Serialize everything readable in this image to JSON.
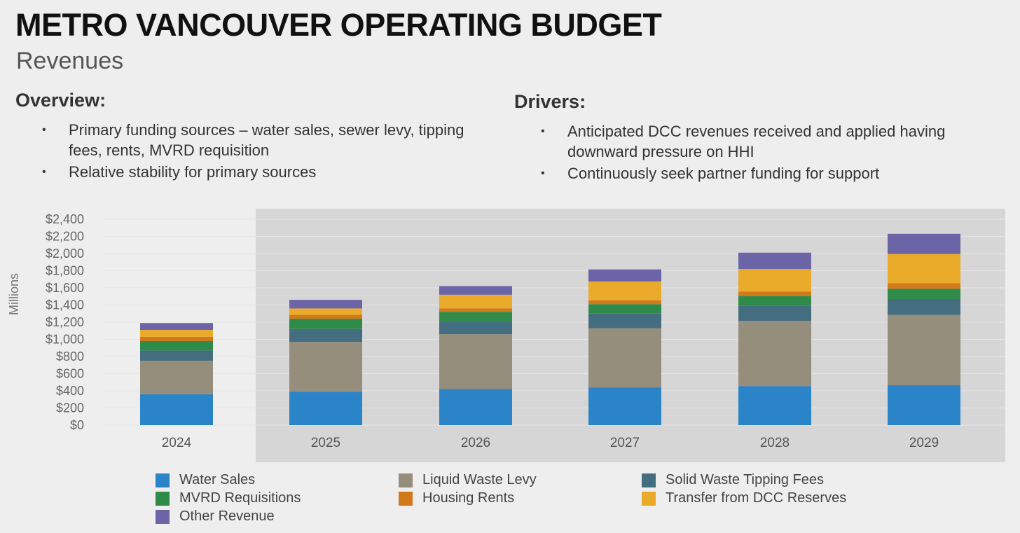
{
  "header": {
    "title": "METRO VANCOUVER OPERATING BUDGET",
    "subtitle": "Revenues"
  },
  "overview": {
    "heading": "Overview:",
    "bullets": [
      "Primary funding sources – water sales, sewer levy, tipping fees, rents, MVRD requisition",
      "Relative stability for primary sources"
    ]
  },
  "drivers": {
    "heading": "Drivers:",
    "bullets": [
      "Anticipated DCC revenues received and applied having downward pressure on HHI",
      "Continuously seek partner funding for support"
    ]
  },
  "chart_data": {
    "type": "bar",
    "stacked": true,
    "ylabel": "Millions",
    "ylim": [
      0,
      2400
    ],
    "yticks": [
      "$0",
      "$200",
      "$400",
      "$600",
      "$800",
      "$1,000",
      "$1,200",
      "$1,400",
      "$1,600",
      "$1,800",
      "$2,000",
      "$2,200",
      "$2,400"
    ],
    "categories": [
      "2024",
      "2025",
      "2026",
      "2027",
      "2028",
      "2029"
    ],
    "shaded_categories": [
      "2025",
      "2026",
      "2027",
      "2028",
      "2029"
    ],
    "grid": true,
    "legend_position": "bottom",
    "series": [
      {
        "name": "Water Sales",
        "color": "#2b84c8",
        "values": [
          360,
          390,
          420,
          440,
          455,
          465
        ]
      },
      {
        "name": "Liquid Waste Levy",
        "color": "#958e7c",
        "values": [
          390,
          580,
          640,
          690,
          760,
          820
        ]
      },
      {
        "name": "Solid Waste Tipping Fees",
        "color": "#456d80",
        "values": [
          120,
          150,
          150,
          170,
          175,
          185
        ]
      },
      {
        "name": "MVRD Requisitions",
        "color": "#2e8b4a",
        "values": [
          110,
          120,
          110,
          110,
          115,
          120
        ]
      },
      {
        "name": "Housing Rents",
        "color": "#d2791b",
        "values": [
          50,
          45,
          40,
          45,
          50,
          65
        ]
      },
      {
        "name": "Transfer from DCC Reserves",
        "color": "#eaaa2a",
        "values": [
          80,
          75,
          160,
          220,
          265,
          340
        ]
      },
      {
        "name": "Other Revenue",
        "color": "#6b64a6",
        "values": [
          80,
          100,
          100,
          140,
          190,
          235
        ]
      }
    ]
  }
}
